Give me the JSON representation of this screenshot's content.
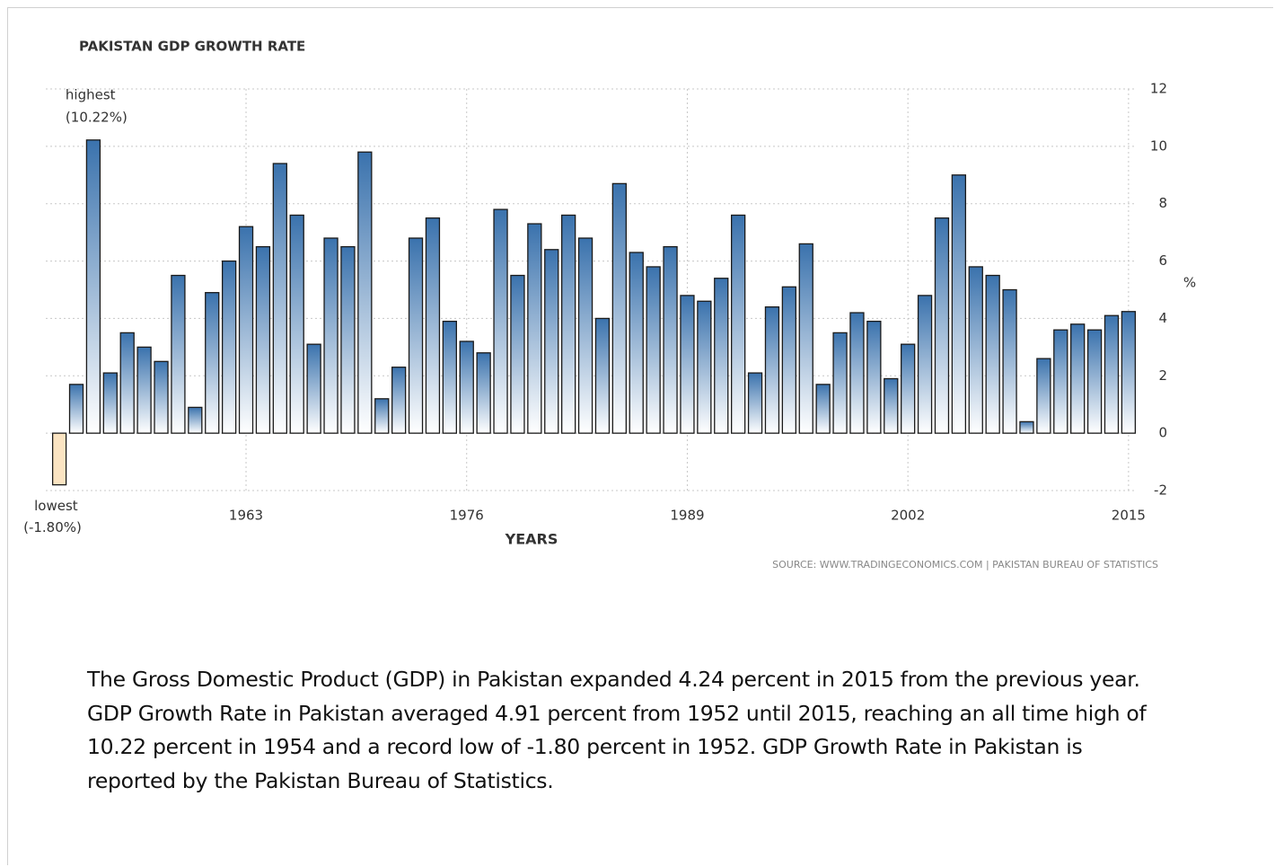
{
  "chart_data": {
    "type": "bar",
    "title": "PAKISTAN GDP GROWTH RATE",
    "x_label": "YEARS",
    "y_label": "%",
    "source": "SOURCE: WWW.TRADINGECONOMICS.COM | PAKISTAN BUREAU OF STATISTICS",
    "x": [
      1952,
      1953,
      1954,
      1955,
      1956,
      1957,
      1958,
      1959,
      1960,
      1961,
      1962,
      1963,
      1964,
      1965,
      1966,
      1967,
      1968,
      1969,
      1970,
      1971,
      1972,
      1973,
      1974,
      1975,
      1976,
      1977,
      1978,
      1979,
      1980,
      1981,
      1982,
      1983,
      1984,
      1985,
      1986,
      1987,
      1988,
      1989,
      1990,
      1991,
      1992,
      1993,
      1994,
      1995,
      1996,
      1997,
      1998,
      1999,
      2000,
      2001,
      2002,
      2003,
      2004,
      2005,
      2006,
      2007,
      2008,
      2009,
      2010,
      2011,
      2012,
      2013,
      2014,
      2015
    ],
    "values": [
      -1.8,
      1.7,
      10.22,
      2.1,
      3.5,
      3.0,
      2.5,
      5.5,
      0.9,
      4.9,
      6.0,
      7.2,
      6.5,
      9.4,
      7.6,
      3.1,
      6.8,
      6.5,
      9.8,
      1.2,
      2.3,
      6.8,
      7.5,
      3.9,
      3.2,
      2.8,
      7.8,
      5.5,
      7.3,
      6.4,
      7.6,
      6.8,
      4.0,
      8.7,
      6.3,
      5.8,
      6.5,
      4.8,
      4.6,
      5.4,
      7.6,
      2.1,
      4.4,
      5.1,
      6.6,
      1.7,
      3.5,
      4.2,
      3.9,
      1.9,
      3.1,
      4.8,
      7.5,
      9.0,
      5.8,
      5.5,
      5.0,
      0.4,
      2.6,
      3.6,
      3.8,
      3.6,
      4.1,
      4.24
    ],
    "color": "#3a72ad",
    "negative_color": "#fbe4c2",
    "xlim": [
      1951.2,
      2015.8
    ],
    "xticks": [
      1963,
      1976,
      1989,
      2002,
      2015
    ],
    "ylim": [
      -2,
      12
    ],
    "yticks": [
      -2,
      0,
      2,
      4,
      6,
      8,
      10,
      12
    ],
    "grid": true,
    "annotations": [
      {
        "text": "highest",
        "value_label": "(10.22%)",
        "x": 1954,
        "value": 10.22
      },
      {
        "text": "lowest",
        "value_label": "(-1.80%)",
        "x": 1952,
        "value": -1.8
      }
    ]
  },
  "description": "The Gross Domestic Product (GDP) in Pakistan expanded 4.24 percent in 2015 from the previous year. GDP Growth Rate in Pakistan averaged 4.91 percent from 1952 until 2015, reaching an all time high of 10.22 percent in 1954 and a record low of -1.80 percent in 1952. GDP Growth Rate in Pakistan is reported by the Pakistan Bureau of Statistics."
}
